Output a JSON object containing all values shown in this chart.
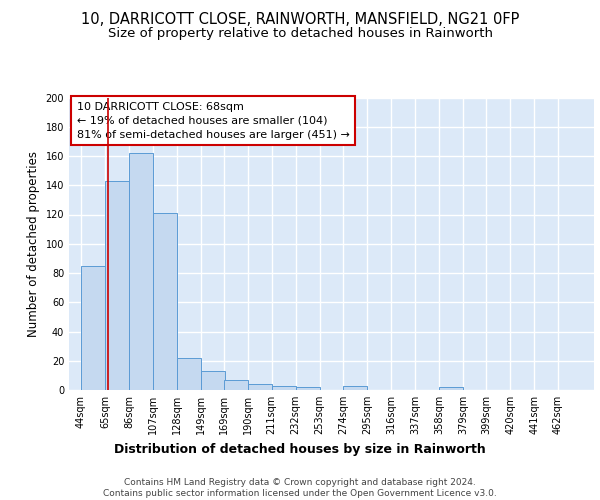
{
  "title1": "10, DARRICOTT CLOSE, RAINWORTH, MANSFIELD, NG21 0FP",
  "title2": "Size of property relative to detached houses in Rainworth",
  "xlabel": "Distribution of detached houses by size in Rainworth",
  "ylabel": "Number of detached properties",
  "bins": [
    44,
    65,
    86,
    107,
    128,
    149,
    169,
    190,
    211,
    232,
    253,
    274,
    295,
    316,
    337,
    358,
    379,
    399,
    420,
    441,
    462
  ],
  "values": [
    85,
    143,
    162,
    121,
    22,
    13,
    7,
    4,
    3,
    2,
    0,
    3,
    0,
    0,
    0,
    2,
    0,
    0,
    0,
    0,
    0
  ],
  "bar_color": "#c5d9f0",
  "bar_edge_color": "#5b9bd5",
  "vline_x": 68,
  "vline_color": "#cc0000",
  "annotation_text": "10 DARRICOTT CLOSE: 68sqm\n← 19% of detached houses are smaller (104)\n81% of semi-detached houses are larger (451) →",
  "annotation_box_color": "#ffffff",
  "annotation_box_edge": "#cc0000",
  "ylim": [
    0,
    200
  ],
  "yticks": [
    0,
    20,
    40,
    60,
    80,
    100,
    120,
    140,
    160,
    180,
    200
  ],
  "footer_text": "Contains HM Land Registry data © Crown copyright and database right 2024.\nContains public sector information licensed under the Open Government Licence v3.0.",
  "bg_color": "#dce9f8",
  "grid_color": "#ffffff",
  "title1_fontsize": 10.5,
  "title2_fontsize": 9.5,
  "tick_fontsize": 7,
  "xlabel_fontsize": 9,
  "ylabel_fontsize": 8.5,
  "annotation_fontsize": 8,
  "footer_fontsize": 6.5
}
